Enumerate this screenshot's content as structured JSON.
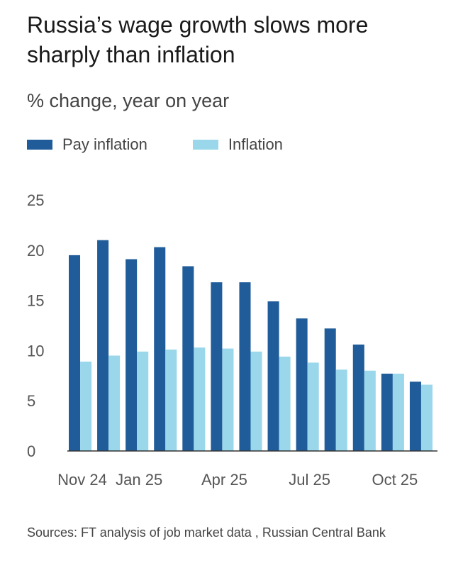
{
  "title": "Russia’s wage growth slows more sharply than inflation",
  "subtitle": "% change, year on year",
  "source": "Sources: FT analysis of job market data , Russian Central Bank",
  "colors": {
    "pay": "#1f5c99",
    "inflation": "#9ad7eb",
    "axis": "#333333"
  },
  "chart_data": {
    "type": "bar",
    "title": "Russia’s wage growth slows more sharply than inflation",
    "ylabel": "% change, year on year",
    "xlabel": "",
    "ylim": [
      0,
      25
    ],
    "yticks": [
      0,
      5,
      10,
      15,
      20,
      25
    ],
    "grid": false,
    "legend_position": "top-left",
    "categories": [
      "Nov 24",
      "Dec 24",
      "Jan 25",
      "Feb 25",
      "Mar 25",
      "Apr 25",
      "May 25",
      "Jun 25",
      "Jul 25",
      "Aug 25",
      "Sep 25",
      "Oct 25",
      "Nov 25"
    ],
    "xtick_labels": [
      {
        "index": 0,
        "label": "Nov 24"
      },
      {
        "index": 2,
        "label": "Jan 25"
      },
      {
        "index": 5,
        "label": "Apr 25"
      },
      {
        "index": 8,
        "label": "Jul 25"
      },
      {
        "index": 11,
        "label": "Oct 25"
      }
    ],
    "series": [
      {
        "name": "Pay inflation",
        "values": [
          19.5,
          21.0,
          19.1,
          20.3,
          18.4,
          16.8,
          16.8,
          14.9,
          13.2,
          12.2,
          10.6,
          7.7,
          6.9
        ]
      },
      {
        "name": "Inflation",
        "values": [
          8.9,
          9.5,
          9.9,
          10.1,
          10.3,
          10.2,
          9.9,
          9.4,
          8.8,
          8.1,
          8.0,
          7.7,
          6.6
        ]
      }
    ]
  }
}
